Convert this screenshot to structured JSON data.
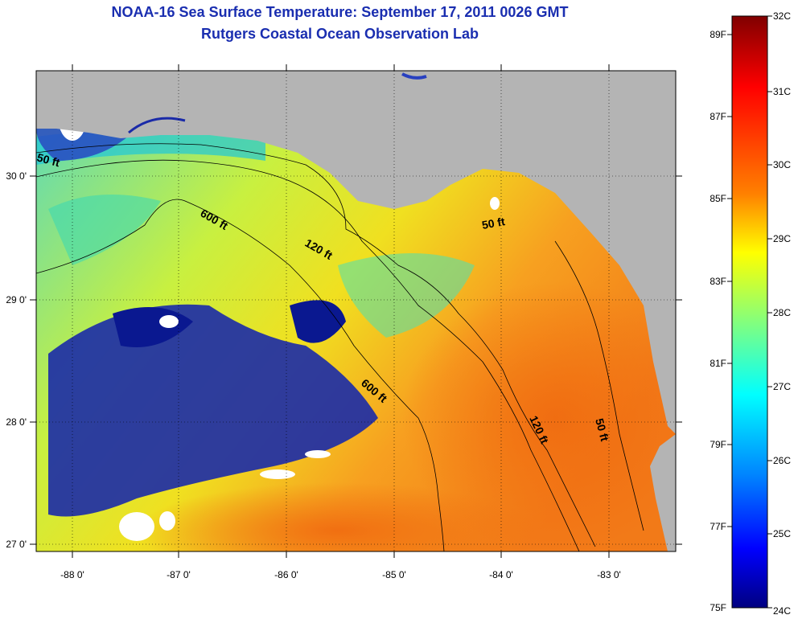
{
  "header": {
    "title": "NOAA-16 Sea Surface Temperature:  September 17, 2011 0026 GMT",
    "subtitle": "Rutgers Coastal Ocean Observation Lab"
  },
  "map": {
    "longitude_ticks": [
      "-88 0'",
      "-87 0'",
      "-86 0'",
      "-85 0'",
      "-84 0'",
      "-83 0'"
    ],
    "latitude_ticks": [
      "30 0'",
      "29 0'",
      "28 0'",
      "27 0'"
    ],
    "isobath_labels": [
      {
        "text": "50 ft"
      },
      {
        "text": "600 ft"
      },
      {
        "text": "120 ft"
      },
      {
        "text": "50 ft"
      },
      {
        "text": "600 ft"
      },
      {
        "text": "120 ft"
      },
      {
        "text": "50 ft"
      }
    ]
  },
  "colorbar": {
    "fahrenheit_labels": [
      "89F",
      "87F",
      "85F",
      "83F",
      "81F",
      "79F",
      "77F",
      "75F"
    ],
    "celsius_labels": [
      "32C",
      "31C",
      "30C",
      "29C",
      "28C",
      "27C",
      "26C",
      "25C",
      "24C"
    ],
    "colors": [
      "#800000",
      "#ff0000",
      "#ff8000",
      "#ffff00",
      "#80ff80",
      "#00ffff",
      "#0080ff",
      "#0000ff",
      "#000080"
    ]
  },
  "colors": {
    "land": "#b4b4b4",
    "cloud": "#ffffff",
    "title": "#1a2eb0"
  }
}
